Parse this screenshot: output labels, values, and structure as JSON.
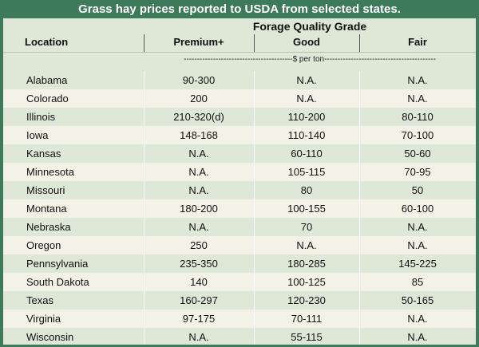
{
  "title": "Grass hay prices reported to USDA from selected states.",
  "header": {
    "group_label": "Forage Quality Grade",
    "location_label": "Location",
    "columns": [
      "Premium+",
      "Good",
      "Fair"
    ],
    "units": "-----------------------------------------$ per ton------------------------------------------"
  },
  "rows": [
    {
      "location": "Alabama",
      "premium": "90-300",
      "good": "N.A.",
      "fair": "N.A."
    },
    {
      "location": "Colorado",
      "premium": "200",
      "good": "N.A.",
      "fair": "N.A."
    },
    {
      "location": "Illinois",
      "premium": "210-320(d)",
      "good": "110-200",
      "fair": "80-110"
    },
    {
      "location": "Iowa",
      "premium": "148-168",
      "good": "110-140",
      "fair": "70-100"
    },
    {
      "location": "Kansas",
      "premium": "N.A.",
      "good": "60-110",
      "fair": "50-60"
    },
    {
      "location": "Minnesota",
      "premium": "N.A.",
      "good": "105-115",
      "fair": "70-95"
    },
    {
      "location": "Missouri",
      "premium": "N.A.",
      "good": "80",
      "fair": "50"
    },
    {
      "location": "Montana",
      "premium": "180-200",
      "good": "100-155",
      "fair": "60-100"
    },
    {
      "location": "Nebraska",
      "premium": "N.A.",
      "good": "70",
      "fair": "N.A."
    },
    {
      "location": "Oregon",
      "premium": "250",
      "good": "N.A.",
      "fair": "N.A."
    },
    {
      "location": "Pennsylvania",
      "premium": "235-350",
      "good": "180-285",
      "fair": "145-225"
    },
    {
      "location": "South Dakota",
      "premium": "140",
      "good": "100-125",
      "fair": "85"
    },
    {
      "location": "Texas",
      "premium": "160-297",
      "good": "120-230",
      "fair": "50-165"
    },
    {
      "location": "Virginia",
      "premium": "97-175",
      "good": "70-111",
      "fair": "N.A."
    },
    {
      "location": "Wisconsin",
      "premium": "N.A.",
      "good": "55-115",
      "fair": "N.A."
    }
  ]
}
